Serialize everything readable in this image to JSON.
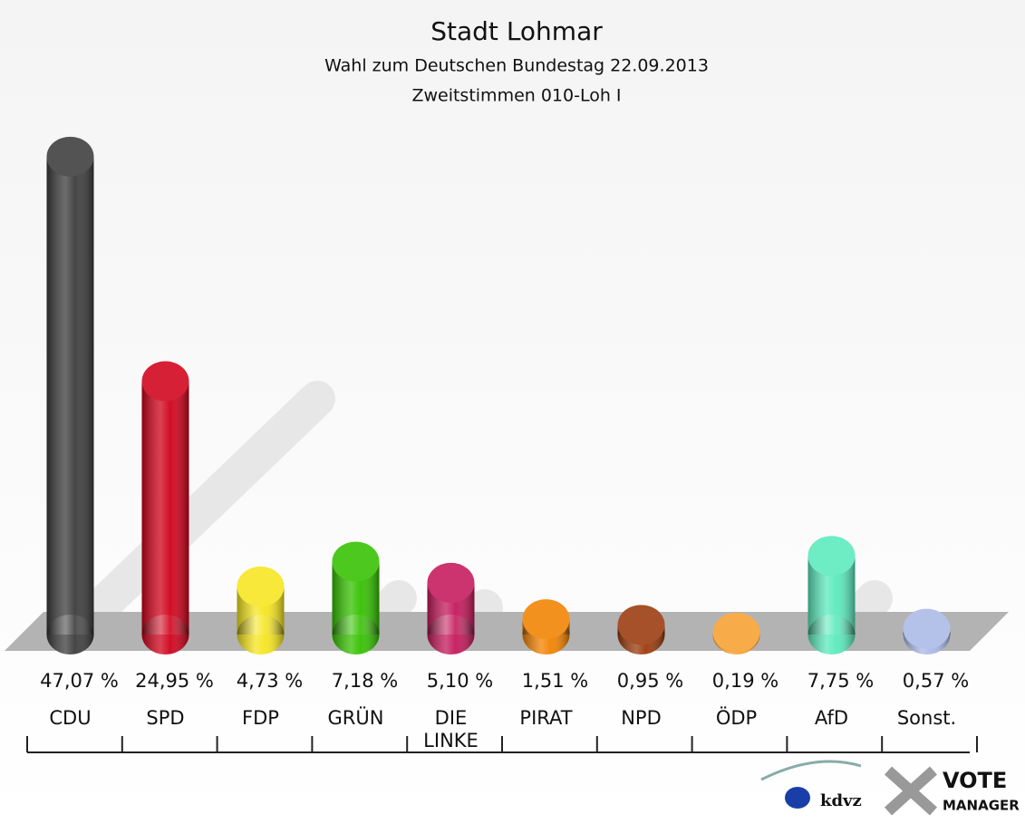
{
  "chart_data": {
    "type": "bar",
    "title": "Stadt Lohmar",
    "subtitle": "Wahl zum Deutschen Bundestag 22.09.2013",
    "subtitle2": "Zweitstimmen 010-Loh I",
    "categories": [
      "CDU",
      "SPD",
      "FDP",
      "GRÜN",
      "DIE LINKE",
      "PIRAT",
      "NPD",
      "ÖDP",
      "AfD",
      "Sonst."
    ],
    "values": [
      47.07,
      24.95,
      4.73,
      7.18,
      5.1,
      1.51,
      0.95,
      0.19,
      7.75,
      0.57
    ],
    "value_labels": [
      "47,07 %",
      "24,95 %",
      "4,73 %",
      "7,18 %",
      "5,10 %",
      "1,51 %",
      "0,95 %",
      "0,19 %",
      "7,75 %",
      "0,57 %"
    ],
    "colors": [
      "#3c3c3c",
      "#d0021b",
      "#f6e51e",
      "#34c100",
      "#c4195a",
      "#f28200",
      "#9a3a0c",
      "#f7a030",
      "#5beabc",
      "#aab9e6"
    ]
  },
  "logo": {
    "kdvz": "kdvz",
    "vote": "VOTE",
    "manager": "MANAGER"
  }
}
